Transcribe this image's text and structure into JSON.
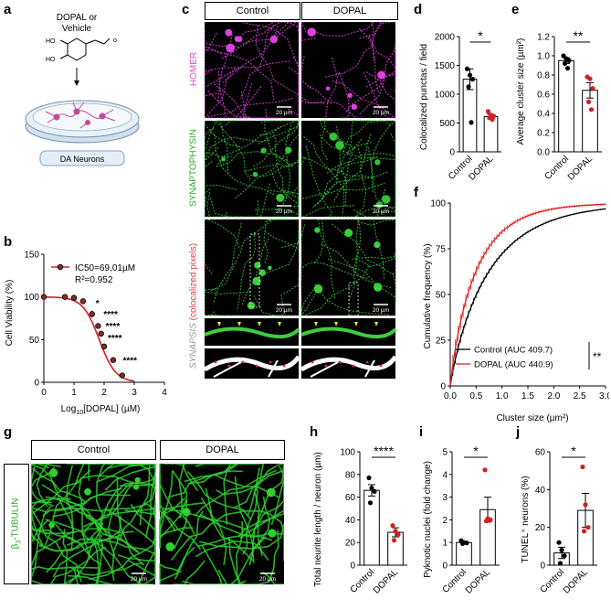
{
  "panel_letters": {
    "a": "a",
    "b": "b",
    "c": "c",
    "d": "d",
    "e": "e",
    "f": "f",
    "g": "g",
    "h": "h",
    "i": "i",
    "j": "j"
  },
  "schematic": {
    "treatment": "DOPAL or\nVehicle",
    "treatment_l1": "DOPAL or",
    "treatment_l2": "Vehicle",
    "ho_top": "HO",
    "ho_bottom": "HO",
    "dish_label": "DA Neurons"
  },
  "micrographs_c": {
    "col_control": "Control",
    "col_dopal": "DOPAL",
    "row_homer": "HOMER",
    "row_synaptophysin": "SYNAPTOPHYSIN",
    "row_merge_a": "SYNAPSIS",
    "row_merge_b": "(colocalized pixels)",
    "scalebar": "20 µm",
    "colors": {
      "homer": "#e040e0",
      "synaptophysin": "#34c434",
      "merge_label": "#e04040",
      "stain_label_homer": "#e050c0"
    }
  },
  "micrographs_g": {
    "col_control": "Control",
    "col_dopal": "DOPAL",
    "row_label": "β3-TUBULIN",
    "row_label_beta": "β",
    "row_label_sub": "3",
    "row_label_rest": "-TUBULIN",
    "scalebar": "20 µm"
  },
  "chart_data": [
    {
      "panel": "b",
      "type": "line",
      "xlabel_main": "Log",
      "xlabel_sub": "10",
      "xlabel_rest": "[DOPAL] (µM)",
      "ylabel": "Cell Viability (%)",
      "xlim": [
        0,
        4
      ],
      "ylim": [
        0,
        150
      ],
      "xticks": [
        "0",
        "1",
        "2",
        "3",
        "4"
      ],
      "yticks": [
        "0",
        "50",
        "100",
        "150"
      ],
      "legend": [
        "IC50=69,01µM",
        "R²=0.952"
      ],
      "points": [
        {
          "x": 0.0,
          "y": 100,
          "err": 3
        },
        {
          "x": 0.7,
          "y": 100,
          "err": 3
        },
        {
          "x": 1.0,
          "y": 99,
          "err": 3
        },
        {
          "x": 1.3,
          "y": 95,
          "err": 3
        },
        {
          "x": 1.6,
          "y": 80,
          "err": 4
        },
        {
          "x": 1.8,
          "y": 66,
          "err": 3
        },
        {
          "x": 1.9,
          "y": 57,
          "err": 3
        },
        {
          "x": 2.0,
          "y": 42,
          "err": 3
        },
        {
          "x": 2.3,
          "y": 26,
          "err": 3
        },
        {
          "x": 2.6,
          "y": 8,
          "err": 2
        }
      ],
      "fit": {
        "top": 100,
        "bottom": 0,
        "log_ic50": 1.839,
        "hill": 1.6
      },
      "stars": [
        {
          "x": 1.72,
          "y": 89,
          "text": "*"
        },
        {
          "x": 1.98,
          "y": 76,
          "text": "****"
        },
        {
          "x": 2.05,
          "y": 62,
          "text": "****"
        },
        {
          "x": 2.12,
          "y": 48,
          "text": "****"
        },
        {
          "x": 2.62,
          "y": 22,
          "text": "****"
        }
      ],
      "color": "#d32020"
    },
    {
      "panel": "d",
      "type": "bar",
      "categories": [
        "Control",
        "DOPAL"
      ],
      "values": [
        1260,
        610
      ],
      "errors": [
        180,
        40
      ],
      "points": [
        [
          1440,
          1330,
          1260,
          1130,
          510
        ],
        [
          700,
          640,
          620,
          590,
          560
        ]
      ],
      "ylabel": "Colocalized punctas / field",
      "ylim": [
        0,
        2000
      ],
      "yticks": [
        "0",
        "500",
        "1000",
        "1500",
        "2000"
      ],
      "significance": "*",
      "colors": [
        "#000000",
        "#d32020"
      ]
    },
    {
      "panel": "e",
      "type": "bar",
      "categories": [
        "Control",
        "DOPAL"
      ],
      "values": [
        0.95,
        0.64
      ],
      "errors": [
        0.03,
        0.08
      ],
      "points": [
        [
          1.0,
          0.97,
          0.95,
          0.92,
          0.87
        ],
        [
          0.78,
          0.76,
          0.66,
          0.52,
          0.44
        ]
      ],
      "ylabel": "Average cluster size (µm²)",
      "ylim": [
        0,
        1.2
      ],
      "yticks": [
        "0.0",
        "0.2",
        "0.4",
        "0.6",
        "0.8",
        "1.0",
        "1.2"
      ],
      "significance": "**",
      "colors": [
        "#000000",
        "#d32020"
      ]
    },
    {
      "panel": "f",
      "type": "line",
      "xlabel": "Cluster size (µm²)",
      "ylabel": "Cumulative frequency (%)",
      "xlim": [
        0,
        3
      ],
      "ylim": [
        0,
        100
      ],
      "xticks": [
        "0.0",
        "0.5",
        "1.0",
        "1.5",
        "2.0",
        "2.5",
        "3.0"
      ],
      "yticks": [
        "0",
        "25",
        "50",
        "75",
        "100"
      ],
      "series": [
        {
          "name": "Control (AUC 409.7)",
          "color": "#000000",
          "k": 1.28,
          "err": 3
        },
        {
          "name": "DOPAL (AUC 440.9)",
          "color": "#e02020",
          "k": 1.85,
          "err": 6
        }
      ],
      "significance": "**"
    },
    {
      "panel": "h",
      "type": "bar",
      "categories": [
        "Control",
        "DOPAL"
      ],
      "values": [
        66,
        29
      ],
      "errors": [
        5,
        4
      ],
      "points": [
        [
          77,
          68,
          65,
          55
        ],
        [
          35,
          30,
          27,
          22
        ]
      ],
      "ylabel": "Total neurite length / neuron (µm)",
      "ylim": [
        0,
        100
      ],
      "yticks": [
        "0",
        "20",
        "40",
        "60",
        "80",
        "100"
      ],
      "significance": "****",
      "colors": [
        "#000000",
        "#d32020"
      ]
    },
    {
      "panel": "i",
      "type": "bar",
      "categories": [
        "Control",
        "DOPAL"
      ],
      "values": [
        1.0,
        2.45
      ],
      "errors": [
        0.04,
        0.55
      ],
      "points": [
        [
          1.08,
          1.0,
          0.98,
          0.95
        ],
        [
          4.2,
          2.05,
          2.0,
          1.95
        ]
      ],
      "ylabel": "Pyknotic nuclei (fold change)",
      "ylim": [
        0,
        5
      ],
      "yticks": [
        "0",
        "1",
        "2",
        "3",
        "4",
        "5"
      ],
      "significance": "*",
      "colors": [
        "#000000",
        "#d32020"
      ]
    },
    {
      "panel": "j",
      "type": "bar",
      "categories": [
        "Control",
        "DOPAL"
      ],
      "values": [
        6.5,
        29
      ],
      "errors": [
        3,
        9
      ],
      "points": [
        [
          12,
          8,
          5,
          1
        ],
        [
          52,
          32,
          20,
          18
        ]
      ],
      "ylabel": "TUNEL⁺ neurons (%)",
      "ylim": [
        0,
        60
      ],
      "yticks": [
        "0",
        "20",
        "40",
        "60"
      ],
      "significance": "*",
      "colors": [
        "#000000",
        "#d32020"
      ]
    }
  ]
}
